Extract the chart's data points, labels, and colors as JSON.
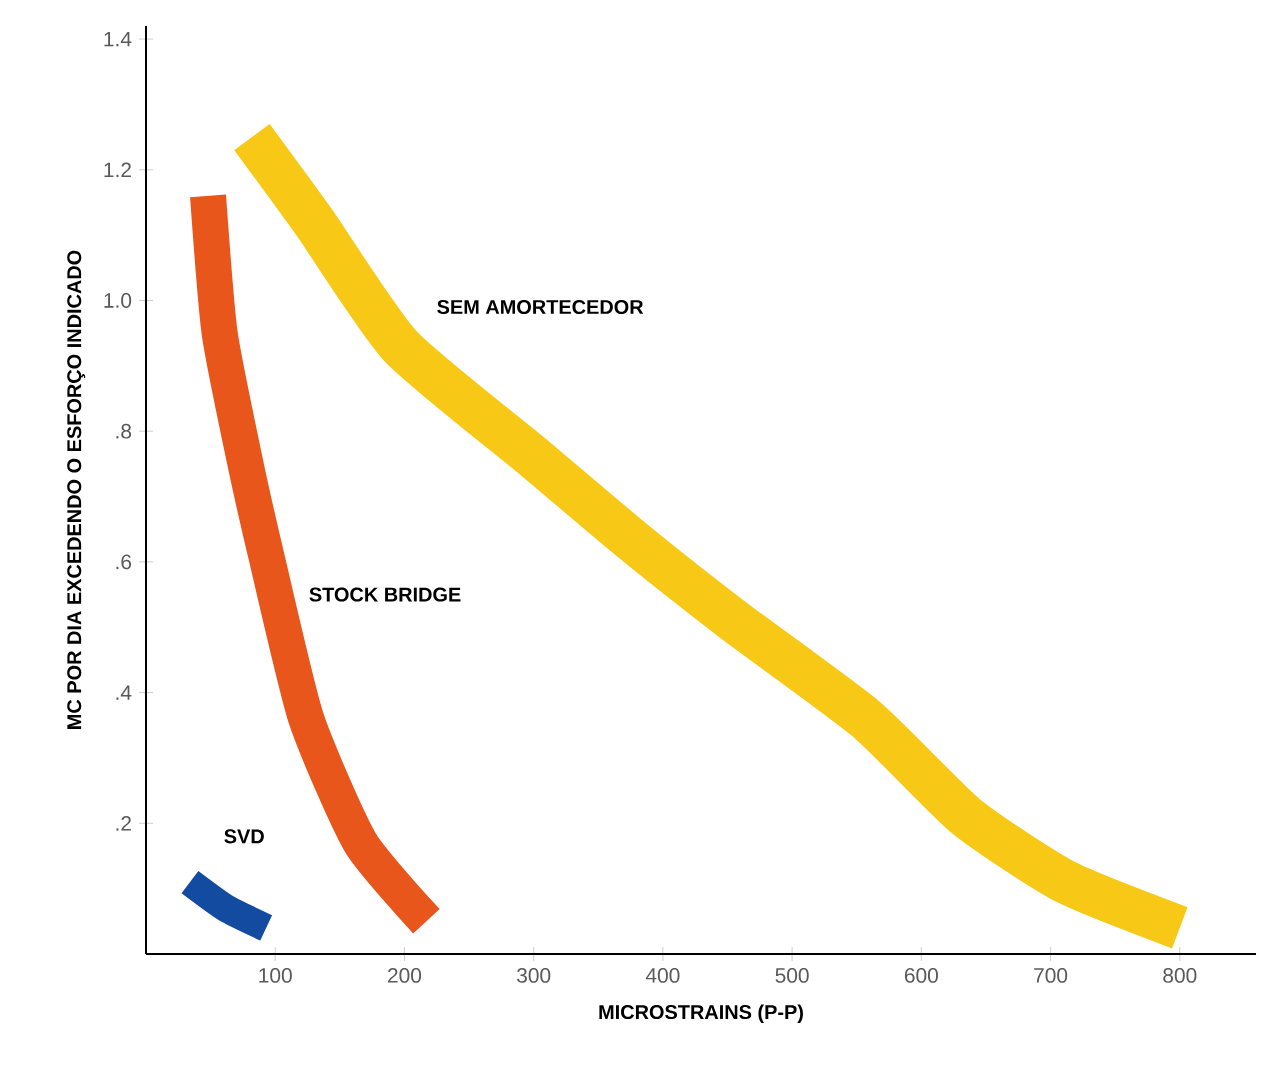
{
  "chart_data": {
    "type": "line",
    "xlabel": "MICROSTRAINS (P-P)",
    "ylabel": "MC POR DIA EXCEDENDO O ESFORÇO INDICADO",
    "xlim": [
      0,
      859
    ],
    "ylim": [
      0,
      1.42
    ],
    "xticks": [
      100,
      200,
      300,
      400,
      500,
      600,
      700,
      800
    ],
    "yticks": [
      {
        "value": 0.2,
        "label": ".2"
      },
      {
        "value": 0.4,
        "label": ".4"
      },
      {
        "value": 0.6,
        "label": ".6"
      },
      {
        "value": 0.8,
        "label": ".8"
      },
      {
        "value": 1.0,
        "label": "1.0"
      },
      {
        "value": 1.2,
        "label": "1.2"
      },
      1.4
    ],
    "grid": false,
    "marker": "none",
    "line_style": "solid",
    "series": [
      {
        "name": "SEM AMORTECEDOR",
        "color": "#f7c815",
        "x": [
          82,
          130,
          197,
          300,
          378,
          455,
          557,
          635,
          712,
          800
        ],
        "values": [
          1.25,
          1.12,
          0.93,
          0.76,
          0.63,
          0.51,
          0.36,
          0.21,
          0.11,
          0.04
        ]
      },
      {
        "name": "STOCK BRIDGE",
        "color": "#e8561c",
        "x": [
          48,
          57,
          77,
          93,
          124,
          166,
          217
        ],
        "values": [
          1.16,
          0.95,
          0.75,
          0.61,
          0.36,
          0.17,
          0.05
        ]
      },
      {
        "name": "SVD",
        "color": "#124ba0",
        "x": [
          34,
          62,
          93
        ],
        "values": [
          0.11,
          0.07,
          0.04
        ]
      }
    ]
  }
}
